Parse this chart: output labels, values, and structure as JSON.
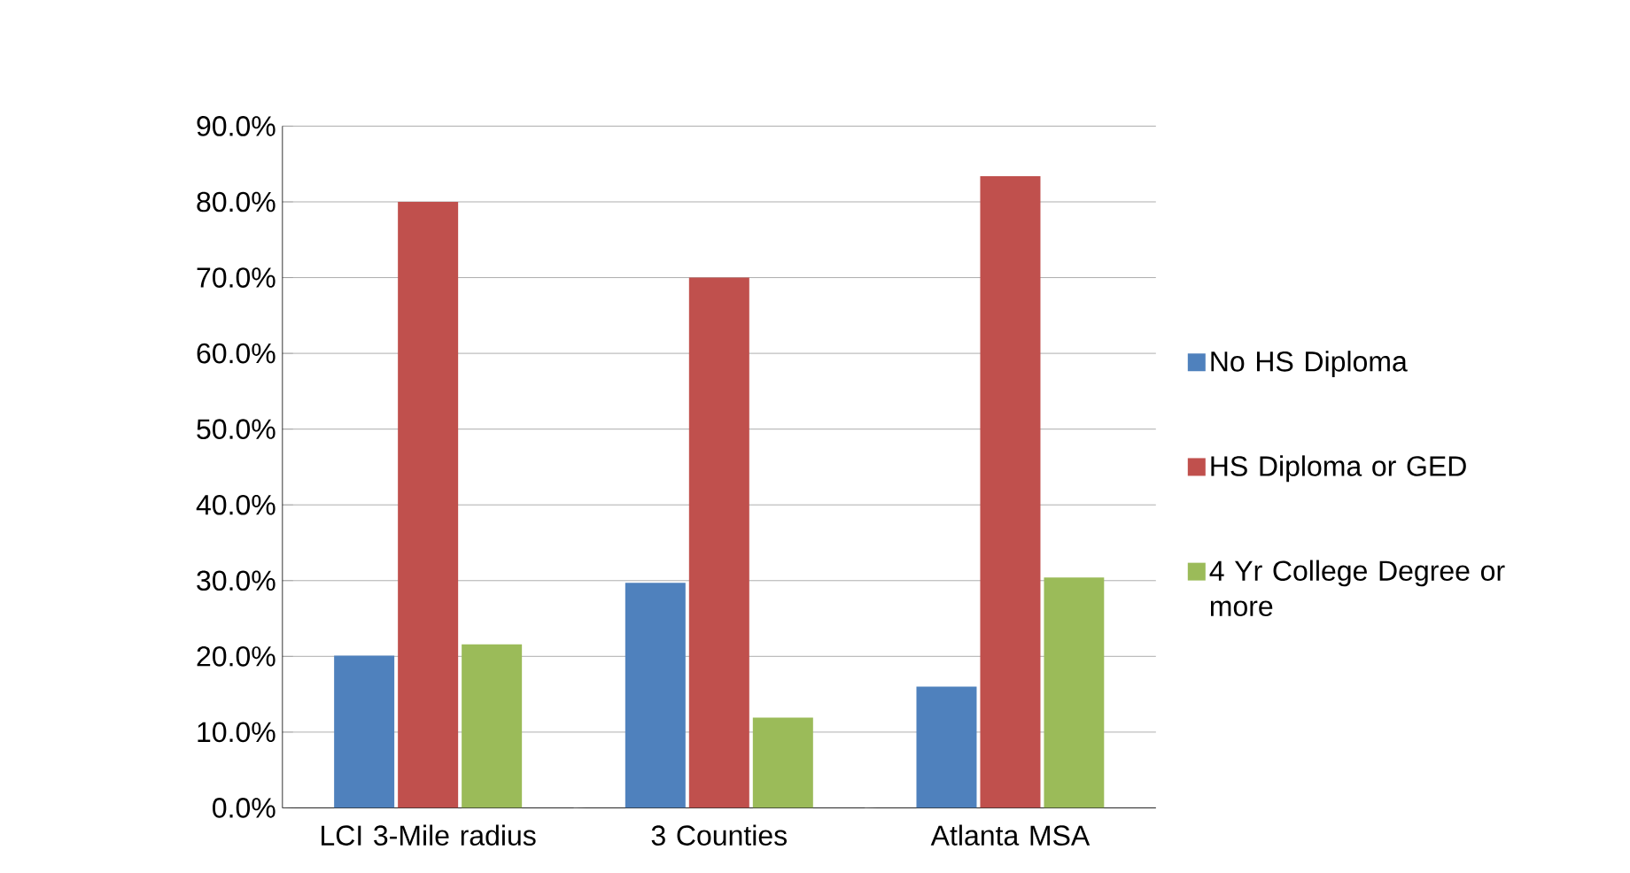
{
  "chart_data": {
    "type": "bar",
    "categories": [
      "LCI 3-Mile radius",
      "3 Counties",
      "Atlanta MSA"
    ],
    "series": [
      {
        "name": "No HS Diploma",
        "color": "#4f81bd",
        "values": [
          20.1,
          29.7,
          16.0
        ]
      },
      {
        "name": "HS Diploma or GED",
        "color": "#c0504d",
        "values": [
          80.0,
          70.0,
          83.4
        ]
      },
      {
        "name": "4 Yr College Degree or more",
        "color": "#9bbb59",
        "values": [
          21.6,
          11.9,
          30.4
        ]
      }
    ],
    "ylim": [
      0,
      90
    ],
    "yticks": [
      {
        "value": 0,
        "label": "0.0%"
      },
      {
        "value": 10,
        "label": "10.0%"
      },
      {
        "value": 20,
        "label": "20.0%"
      },
      {
        "value": 30,
        "label": "30.0%"
      },
      {
        "value": 40,
        "label": "40.0%"
      },
      {
        "value": 50,
        "label": "50.0%"
      },
      {
        "value": 60,
        "label": "60.0%"
      },
      {
        "value": 70,
        "label": "70.0%"
      },
      {
        "value": 80,
        "label": "80.0%"
      },
      {
        "value": 90,
        "label": "90.0%"
      }
    ],
    "grid": "y",
    "legend": "right"
  }
}
